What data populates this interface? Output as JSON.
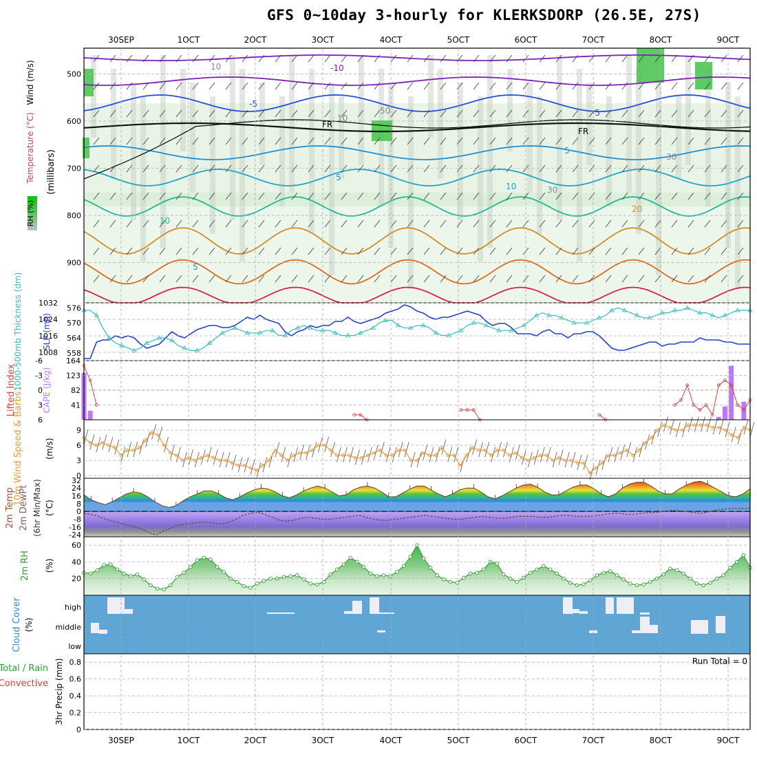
{
  "title": "GFS 0~10day 3-hourly for KLERKSDORP (26.5E, 27S)",
  "dates_top": [
    "30SEP",
    "1OCT",
    "2OCT",
    "3OCT",
    "4OCT",
    "5OCT",
    "6OCT",
    "7OCT",
    "8OCT",
    "9OCT"
  ],
  "dates_bottom": [
    "30SEP",
    "1OCT",
    "2OCT",
    "3OCT",
    "4OCT",
    "5OCT",
    "6OCT",
    "7OCT",
    "8OCT",
    "9OCT"
  ],
  "panel_labels": {
    "upper": [
      "RH (%)",
      "Temperature (°C)",
      "Wind (m/s)",
      "(millibars)"
    ],
    "slp": [
      "1000-500mb Thickness (dm)",
      "SLP (mb)"
    ],
    "cape": [
      "Lifted Index",
      "CAPE (J/kg)"
    ],
    "wind": [
      "10m Wind Speed & Barbs",
      "(m/s)"
    ],
    "temp": [
      "2m Temp",
      "2m DewPt",
      "(6hr Min/Max)",
      "(°C)"
    ],
    "rh": [
      "2m RH",
      "(%)"
    ],
    "cloud": [
      "Cloud Cover",
      "(%)"
    ],
    "precip": [
      "Total / Rain",
      "Convective",
      "3hr Precip (mm)"
    ]
  },
  "run_total": "Run Total = 0",
  "contour_labels": [
    "-10",
    "-5",
    "-5",
    "FR",
    "FR",
    "5",
    "5",
    "5",
    "10",
    "10",
    "20",
    "50",
    "30",
    "30",
    "10",
    "10"
  ],
  "colors": {
    "grid": "#aaaaaa",
    "slp": "#1f3fcf",
    "thickness": "#33bbbb",
    "cape": "#bb77ff",
    "lifted": "#e03c3c",
    "wind": "#e69a2e",
    "rh": "#2e9e2e",
    "cloud_bg": "#5fa6d4",
    "cloud_block": "#f0eef5"
  },
  "chart_data": [
    {
      "type": "line",
      "name": "upper_air_cross_section",
      "y_label": "(millibars)",
      "y_ticks": [
        500,
        600,
        700,
        800,
        900
      ],
      "ylim": [
        460,
        1000
      ],
      "series": [
        {
          "name": "FR",
          "values": []
        }
      ]
    },
    {
      "type": "line",
      "name": "slp_thickness",
      "y_ticks_left": [
        558,
        564,
        570,
        576
      ],
      "y_ticks_right": [
        1008,
        1016,
        1024,
        1032
      ],
      "series": [
        {
          "name": "SLP (mb)",
          "values": [
            1005,
            1005,
            1013,
            1014,
            1014,
            1016,
            1015,
            1016,
            1015,
            1012,
            1010,
            1011,
            1012,
            1015,
            1018,
            1016,
            1015,
            1017,
            1019,
            1020,
            1021,
            1021,
            1020,
            1020,
            1021,
            1023,
            1025,
            1024,
            1026,
            1024,
            1023,
            1022,
            1018,
            1016,
            1018,
            1019,
            1021,
            1020,
            1021,
            1021,
            1023,
            1023,
            1025,
            1023,
            1022,
            1023,
            1024,
            1025,
            1027,
            1028,
            1029,
            1031,
            1030,
            1028,
            1027,
            1025,
            1024,
            1025,
            1025,
            1026,
            1027,
            1028,
            1027,
            1026,
            1023,
            1021,
            1022,
            1022,
            1020,
            1017,
            1017,
            1017,
            1016,
            1018,
            1019,
            1017,
            1017,
            1015,
            1017,
            1017,
            1018,
            1018,
            1016,
            1013,
            1010,
            1009,
            1009,
            1010,
            1011,
            1012,
            1013,
            1013,
            1011,
            1012,
            1012,
            1013,
            1013,
            1013,
            1015,
            1014,
            1014,
            1014,
            1013,
            1013,
            1012,
            1012,
            1012
          ]
        },
        {
          "name": "1000-500mb Thickness (dm)",
          "values": [
            575,
            575,
            573,
            568,
            564,
            562,
            561,
            560,
            559,
            560,
            562,
            563,
            564,
            564,
            563,
            561,
            560,
            559,
            559,
            560,
            562,
            564,
            566,
            567,
            568,
            567,
            566,
            566,
            566,
            567,
            567,
            565,
            565,
            567,
            568,
            569,
            568,
            567,
            567,
            567,
            566,
            565,
            565,
            565,
            566,
            567,
            568,
            570,
            571,
            571,
            569,
            568,
            568,
            569,
            569,
            568,
            566,
            565,
            565,
            566,
            567,
            569,
            570,
            570,
            569,
            568,
            567,
            567,
            567,
            568,
            569,
            571,
            573,
            574,
            573,
            573,
            572,
            571,
            570,
            570,
            570,
            571,
            572,
            573,
            575,
            576,
            575,
            574,
            573,
            572,
            572,
            573,
            574,
            574,
            575,
            575,
            576,
            575,
            574,
            574,
            573,
            572,
            573,
            574,
            575,
            575,
            575
          ]
        }
      ]
    },
    {
      "type": "bar",
      "name": "cape_lifted_index",
      "y_ticks_left": [
        -6,
        -3,
        0,
        3,
        6
      ],
      "y_ticks_right": [
        41,
        82,
        123,
        164
      ],
      "cape_values": [
        130,
        25,
        0,
        0,
        0,
        0,
        0,
        0,
        0,
        0,
        0,
        0,
        0,
        0,
        0,
        0,
        0,
        0,
        0,
        0,
        0,
        0,
        0,
        0,
        0,
        0,
        0,
        0,
        0,
        0,
        0,
        0,
        0,
        0,
        0,
        0,
        0,
        0,
        0,
        0,
        0,
        0,
        0,
        0,
        0,
        0,
        0,
        0,
        0,
        0,
        0,
        0,
        0,
        0,
        0,
        0,
        0,
        0,
        0,
        0,
        0,
        0,
        0,
        0,
        0,
        0,
        0,
        0,
        0,
        0,
        0,
        0,
        0,
        0,
        0,
        0,
        0,
        0,
        0,
        0,
        0,
        0,
        0,
        0,
        0,
        0,
        0,
        0,
        0,
        0,
        0,
        0,
        0,
        0,
        0,
        0,
        0,
        0,
        0,
        0,
        0,
        8,
        37,
        150,
        0,
        50,
        0
      ],
      "lifted_values": [
        -5,
        -2,
        3,
        8,
        8,
        8,
        8,
        8,
        8,
        8,
        8,
        8,
        8,
        8,
        8,
        8,
        8,
        8,
        8,
        8,
        8,
        8,
        8,
        8,
        8,
        8,
        8,
        8,
        8,
        8,
        8,
        8,
        8,
        8,
        8,
        8,
        8,
        8,
        8,
        8,
        8,
        8,
        8,
        5,
        5,
        6,
        8,
        8,
        8,
        8,
        8,
        8,
        8,
        8,
        8,
        8,
        8,
        8,
        8,
        8,
        4,
        4,
        4,
        6,
        8,
        8,
        8,
        8,
        8,
        8,
        8,
        8,
        8,
        8,
        8,
        8,
        8,
        8,
        8,
        8,
        8,
        8,
        5,
        7,
        8,
        8,
        8,
        8,
        8,
        8,
        8,
        8,
        8,
        8,
        3,
        2,
        -1,
        3,
        4,
        3,
        5,
        -1,
        -2,
        -1,
        3,
        4,
        2
      ]
    },
    {
      "type": "line",
      "name": "10m_wind",
      "y_ticks": [
        0,
        3,
        6,
        9
      ],
      "ylim": [
        0,
        10
      ],
      "series": [
        {
          "name": "10m Wind Speed",
          "values": [
            7.5,
            6.5,
            6,
            6.5,
            6,
            5.5,
            4,
            5,
            5,
            5.5,
            7,
            8.5,
            8,
            6,
            4.5,
            4,
            3,
            3.5,
            3,
            3.5,
            4,
            3.5,
            3,
            3,
            2.5,
            2,
            2,
            1.5,
            1,
            2,
            3,
            5,
            4,
            3,
            4,
            4.5,
            4.5,
            5,
            6,
            6,
            5,
            4,
            4,
            4,
            3.5,
            3.5,
            4,
            4.5,
            5,
            4,
            4,
            5,
            5,
            3,
            3,
            4.5,
            4,
            4,
            5.5,
            4,
            4,
            2,
            4,
            5.5,
            5,
            5,
            4,
            5,
            5,
            4,
            4.5,
            3.5,
            3,
            3.5,
            4,
            4,
            3,
            3.5,
            3,
            3,
            2.5,
            2.5,
            0.5,
            1.5,
            2.5,
            4,
            4,
            4.5,
            5,
            4,
            5,
            6.5,
            7.5,
            9,
            10,
            9.5,
            9,
            9,
            10,
            10,
            10,
            10,
            9.5,
            9.5,
            9,
            8,
            7.5,
            9.5,
            9
          ]
        }
      ]
    },
    {
      "type": "area",
      "name": "2m_temp",
      "y_ticks": [
        32,
        24,
        16,
        8,
        0,
        -8,
        -16,
        -24
      ],
      "series": [
        {
          "name": "2m Temp",
          "values": [
            17,
            12,
            9,
            7,
            10,
            14,
            18,
            20,
            19,
            15,
            10,
            6,
            4,
            6,
            11,
            15,
            18,
            21,
            21,
            18,
            14,
            12,
            15,
            19,
            22,
            24,
            23,
            20,
            16,
            14,
            17,
            21,
            24,
            26,
            24,
            20,
            16,
            17,
            22,
            25,
            26,
            24,
            20,
            15,
            15,
            19,
            23,
            26,
            26,
            22,
            18,
            15,
            18,
            22,
            24,
            24,
            20,
            15,
            13,
            16,
            20,
            24,
            27,
            28,
            25,
            20,
            17,
            17,
            21,
            25,
            27,
            27,
            23,
            18,
            15,
            18,
            24,
            28,
            30,
            30,
            26,
            21,
            18,
            18,
            23,
            27,
            30,
            31,
            28,
            24,
            20,
            16,
            15,
            18,
            23
          ]
        },
        {
          "name": "2m DewPt",
          "values": [
            -2,
            -3,
            -5,
            -8,
            -10,
            -12,
            -14,
            -16,
            -18,
            -22,
            -24,
            -20,
            -17,
            -14,
            -13,
            -12,
            -11,
            -11,
            -12,
            -13,
            -11,
            -8,
            -4,
            -2,
            -1,
            -3,
            -6,
            -9,
            -10,
            -9,
            -7,
            -6,
            -7,
            -8,
            -8,
            -7,
            -6,
            -5,
            -4,
            -6,
            -8,
            -9,
            -9,
            -8,
            -7,
            -6,
            -5,
            -4,
            -5,
            -6,
            -7,
            -8,
            -8,
            -7,
            -6,
            -5,
            -6,
            -7,
            -7,
            -6,
            -5,
            -5,
            -5,
            -6,
            -6,
            -5,
            -4,
            -4,
            -5,
            -5,
            -5,
            -4,
            -3,
            -2,
            -2,
            -3,
            -3,
            -2,
            -1,
            -1,
            0,
            1,
            1,
            0,
            -1,
            -2,
            -1,
            1,
            2,
            3,
            3,
            3,
            3
          ]
        }
      ]
    },
    {
      "type": "area",
      "name": "2m_rh",
      "y_ticks": [
        20,
        40,
        60
      ],
      "ylim": [
        0,
        70
      ],
      "series": [
        {
          "name": "2m RH",
          "values": [
            27,
            26,
            30,
            36,
            37,
            31,
            26,
            23,
            25,
            19,
            12,
            8,
            7,
            12,
            22,
            27,
            34,
            42,
            45,
            43,
            34,
            28,
            20,
            16,
            11,
            9,
            14,
            17,
            20,
            20,
            22,
            23,
            24,
            19,
            14,
            13,
            16,
            25,
            31,
            37,
            45,
            40,
            34,
            26,
            23,
            24,
            23,
            28,
            35,
            46,
            60,
            44,
            33,
            24,
            19,
            16,
            15,
            21,
            26,
            27,
            31,
            40,
            38,
            25,
            20,
            16,
            21,
            27,
            31,
            35,
            31,
            26,
            20,
            15,
            12,
            13,
            18,
            24,
            27,
            29,
            24,
            19,
            14,
            12,
            13,
            16,
            20,
            25,
            32,
            30,
            26,
            20,
            14,
            12,
            15,
            20,
            24,
            33,
            40,
            48,
            33
          ]
        }
      ]
    },
    {
      "type": "heatmap",
      "name": "cloud_cover",
      "y_ticks": [
        "high",
        "middle",
        "low"
      ],
      "high": [
        0,
        0,
        0,
        0,
        0,
        100,
        100,
        100,
        100,
        30,
        30,
        0,
        0,
        0,
        0,
        0,
        0,
        0,
        0,
        0,
        0,
        0,
        0,
        0,
        0,
        0,
        0,
        0,
        0,
        0,
        0,
        0,
        0,
        0,
        0,
        0,
        0,
        0,
        0,
        0,
        0,
        0,
        0,
        0,
        0,
        0,
        0,
        0,
        0,
        0,
        0,
        0,
        0,
        0,
        0,
        0,
        0,
        0,
        0,
        0,
        0,
        0,
        0,
        0,
        0,
        0,
        0,
        0,
        0,
        0,
        0,
        0,
        0,
        0,
        0,
        0,
        0,
        0,
        0,
        0,
        0,
        0,
        0,
        0,
        0,
        0,
        0,
        0,
        0,
        0,
        0,
        0,
        0,
        0,
        0,
        0,
        0,
        0,
        0,
        0,
        0,
        0,
        0,
        0,
        0,
        0,
        0
      ],
      "middle": [],
      "low": []
    },
    {
      "type": "line",
      "name": "3hr_precip",
      "y_ticks": [
        0,
        0.2,
        0.4,
        0.6,
        0.8
      ],
      "ylim": [
        0,
        0.9
      ],
      "series": [
        {
          "name": "3hr Precip (mm)",
          "values": [
            0,
            0,
            0,
            0,
            0,
            0,
            0,
            0,
            0,
            0
          ]
        }
      ]
    }
  ]
}
